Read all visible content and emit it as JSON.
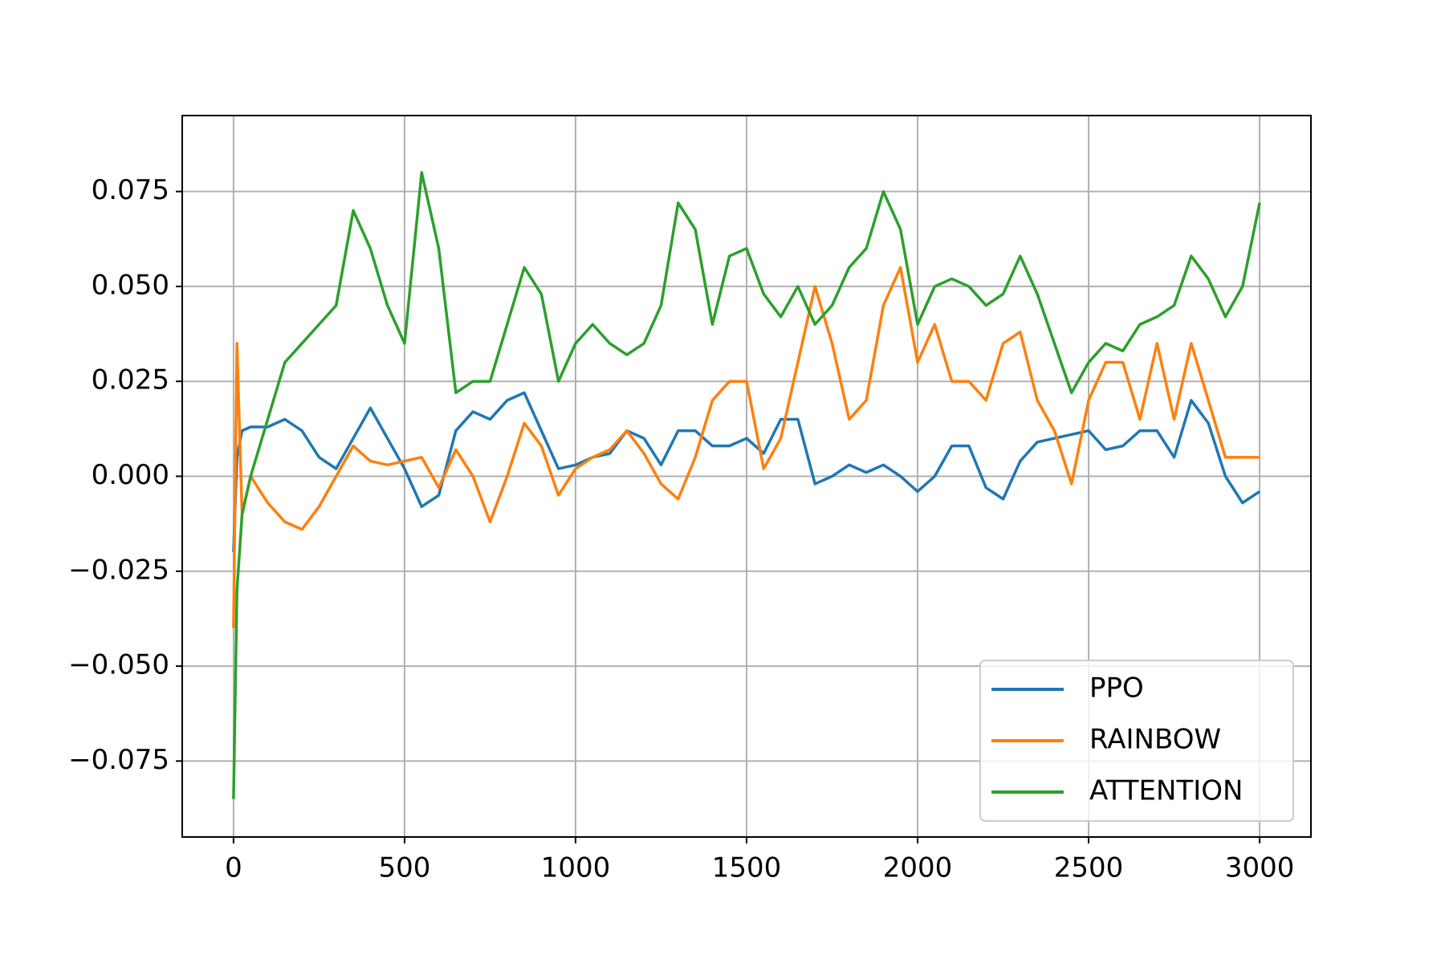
{
  "chart_data": {
    "type": "line",
    "x": [
      0,
      10,
      25,
      50,
      100,
      150,
      200,
      250,
      300,
      350,
      400,
      450,
      500,
      550,
      600,
      650,
      700,
      750,
      800,
      850,
      900,
      950,
      1000,
      1050,
      1100,
      1150,
      1200,
      1250,
      1300,
      1350,
      1400,
      1450,
      1500,
      1550,
      1600,
      1650,
      1700,
      1750,
      1800,
      1850,
      1900,
      1950,
      2000,
      2050,
      2100,
      2150,
      2200,
      2250,
      2300,
      2350,
      2400,
      2450,
      2500,
      2550,
      2600,
      2650,
      2700,
      2750,
      2800,
      2850,
      2900,
      2950,
      3000
    ],
    "series": [
      {
        "name": "PPO",
        "color": "#1f77b4",
        "values": [
          -0.02,
          0.005,
          0.012,
          0.013,
          0.013,
          0.015,
          0.012,
          0.005,
          0.002,
          0.01,
          0.018,
          0.01,
          0.002,
          -0.008,
          -0.005,
          0.012,
          0.017,
          0.015,
          0.02,
          0.022,
          0.012,
          0.002,
          0.003,
          0.005,
          0.006,
          0.012,
          0.01,
          0.003,
          0.012,
          0.012,
          0.008,
          0.008,
          0.01,
          0.006,
          0.015,
          0.015,
          -0.002,
          0.0,
          0.003,
          0.001,
          0.003,
          0.0,
          -0.004,
          0.0,
          0.008,
          0.008,
          -0.003,
          -0.006,
          0.004,
          0.009,
          0.01,
          0.011,
          0.012,
          0.007,
          0.008,
          0.012,
          0.012,
          0.005,
          0.02,
          0.014,
          0.0,
          -0.007,
          -0.004
        ]
      },
      {
        "name": "RAINBOW",
        "color": "#ff7f0e",
        "values": [
          -0.04,
          0.035,
          -0.01,
          0.0,
          -0.007,
          -0.012,
          -0.014,
          -0.008,
          0.0,
          0.008,
          0.004,
          0.003,
          0.004,
          0.005,
          -0.003,
          0.007,
          0.0,
          -0.012,
          0.0,
          0.014,
          0.008,
          -0.005,
          0.002,
          0.005,
          0.007,
          0.012,
          0.006,
          -0.002,
          -0.006,
          0.005,
          0.02,
          0.025,
          0.025,
          0.002,
          0.01,
          0.03,
          0.05,
          0.035,
          0.015,
          0.02,
          0.045,
          0.055,
          0.03,
          0.04,
          0.025,
          0.025,
          0.02,
          0.035,
          0.038,
          0.02,
          0.012,
          -0.002,
          0.02,
          0.03,
          0.03,
          0.015,
          0.035,
          0.015,
          0.035,
          0.02,
          0.005,
          0.005,
          0.005
        ]
      },
      {
        "name": "ATTENTION",
        "color": "#2ca02c",
        "values": [
          -0.085,
          -0.03,
          -0.01,
          0.0,
          0.015,
          0.03,
          0.035,
          0.04,
          0.045,
          0.07,
          0.06,
          0.045,
          0.035,
          0.08,
          0.06,
          0.022,
          0.025,
          0.025,
          0.04,
          0.055,
          0.048,
          0.025,
          0.035,
          0.04,
          0.035,
          0.032,
          0.035,
          0.045,
          0.072,
          0.065,
          0.04,
          0.058,
          0.06,
          0.048,
          0.042,
          0.05,
          0.04,
          0.045,
          0.055,
          0.06,
          0.075,
          0.065,
          0.04,
          0.05,
          0.052,
          0.05,
          0.045,
          0.048,
          0.058,
          0.048,
          0.035,
          0.022,
          0.03,
          0.035,
          0.033,
          0.04,
          0.042,
          0.045,
          0.058,
          0.052,
          0.042,
          0.05,
          0.072
        ]
      }
    ],
    "xlim": [
      -150,
      3150
    ],
    "ylim": [
      -0.095,
      0.095
    ],
    "xticks": [
      0,
      500,
      1000,
      1500,
      2000,
      2500,
      3000
    ],
    "yticks": [
      {
        "value": -0.075,
        "label": "−0.075"
      },
      {
        "value": -0.05,
        "label": "−0.050"
      },
      {
        "value": -0.025,
        "label": "−0.025"
      },
      {
        "value": 0,
        "label": "0.000"
      },
      0.025,
      {
        "value": 0.05,
        "label": "0.050"
      },
      0.075
    ],
    "grid": true,
    "legend": "lower right"
  }
}
